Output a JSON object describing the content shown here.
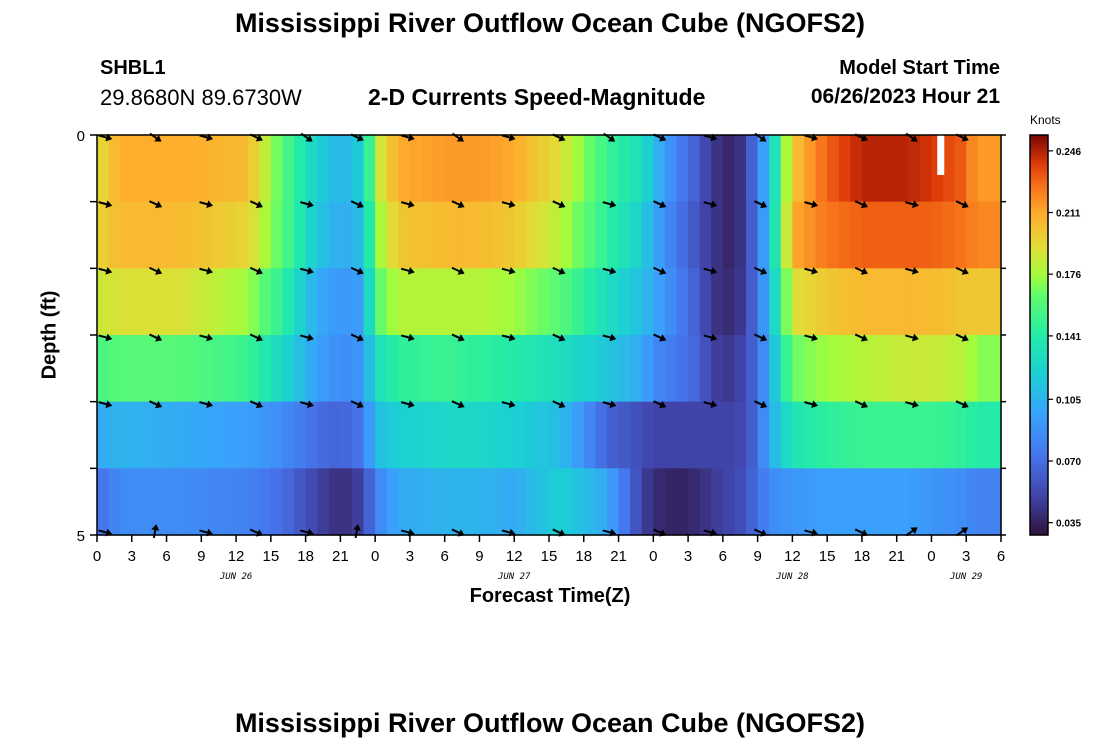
{
  "chart_data": {
    "type": "heatmap",
    "title": "Mississippi River Outflow Ocean Cube (NGOFS2)",
    "station": "SHBL1",
    "coordinates": "29.8680N  89.6730W",
    "subtitle": "2-D Currents Speed-Magnitude",
    "model_start_label": "Model Start Time",
    "model_start_value": "06/26/2023 Hour 21",
    "xlabel": "Forecast Time(Z)",
    "ylabel": "Depth (ft)",
    "y_tick_labels": [
      "0",
      "5"
    ],
    "ylim": [
      0,
      5
    ],
    "x_tick_labels": [
      "0",
      "3",
      "6",
      "9",
      "12",
      "15",
      "18",
      "21",
      "0",
      "3",
      "6",
      "9",
      "12",
      "15",
      "18",
      "21",
      "0",
      "3",
      "6",
      "9",
      "12",
      "15",
      "18",
      "21",
      "0",
      "3",
      "6"
    ],
    "date_labels": [
      {
        "label": "JUN 26",
        "hour": 12
      },
      {
        "label": "JUN 27",
        "hour": 36
      },
      {
        "label": "JUN 28",
        "hour": 60
      },
      {
        "label": "JUN 29",
        "hour": 75
      }
    ],
    "x_range_hours": [
      0,
      78
    ],
    "colorbar": {
      "unit": "Knots",
      "tick_labels": [
        "0.246",
        "0.211",
        "0.176",
        "0.141",
        "0.105",
        "0.070",
        "0.035"
      ],
      "ticks": [
        0.246,
        0.211,
        0.176,
        0.141,
        0.105,
        0.07,
        0.035
      ],
      "range": [
        0.028,
        0.255
      ]
    },
    "layers_depth_ft": [
      0,
      1,
      2,
      3,
      4,
      5
    ],
    "speed_keyframes": {
      "hours": [
        0,
        2,
        7,
        13,
        16,
        19,
        21,
        23,
        24,
        26,
        30,
        33,
        36,
        40,
        44,
        47,
        48,
        50,
        52,
        53,
        54,
        55,
        56,
        57,
        58,
        60,
        63,
        66,
        70,
        72,
        75,
        76,
        77,
        78
      ],
      "layers": [
        [
          0.19,
          0.21,
          0.21,
          0.205,
          0.16,
          0.12,
          0.105,
          0.12,
          0.18,
          0.21,
          0.215,
          0.215,
          0.21,
          0.19,
          0.15,
          0.13,
          0.11,
          0.08,
          0.06,
          0.045,
          0.04,
          0.035,
          0.05,
          0.08,
          0.11,
          0.2,
          0.23,
          0.245,
          0.245,
          0.24,
          0.23,
          0.21,
          0.22,
          0.21
        ],
        [
          0.195,
          0.205,
          0.205,
          0.195,
          0.16,
          0.115,
          0.1,
          0.11,
          0.17,
          0.2,
          0.205,
          0.205,
          0.2,
          0.18,
          0.145,
          0.12,
          0.1,
          0.075,
          0.055,
          0.045,
          0.04,
          0.035,
          0.05,
          0.075,
          0.11,
          0.21,
          0.225,
          0.23,
          0.23,
          0.23,
          0.225,
          0.22,
          0.22,
          0.22
        ],
        [
          0.185,
          0.19,
          0.19,
          0.175,
          0.145,
          0.1,
          0.09,
          0.095,
          0.16,
          0.18,
          0.18,
          0.18,
          0.175,
          0.16,
          0.13,
          0.11,
          0.1,
          0.08,
          0.06,
          0.045,
          0.04,
          0.04,
          0.05,
          0.075,
          0.105,
          0.19,
          0.2,
          0.205,
          0.205,
          0.205,
          0.2,
          0.2,
          0.2,
          0.2
        ],
        [
          0.155,
          0.16,
          0.16,
          0.15,
          0.125,
          0.095,
          0.085,
          0.09,
          0.13,
          0.145,
          0.15,
          0.145,
          0.14,
          0.13,
          0.115,
          0.1,
          0.085,
          0.075,
          0.065,
          0.05,
          0.045,
          0.045,
          0.055,
          0.07,
          0.1,
          0.165,
          0.175,
          0.18,
          0.185,
          0.185,
          0.18,
          0.17,
          0.17,
          0.17
        ],
        [
          0.1,
          0.105,
          0.1,
          0.095,
          0.085,
          0.07,
          0.065,
          0.075,
          0.11,
          0.12,
          0.125,
          0.125,
          0.12,
          0.11,
          0.065,
          0.055,
          0.05,
          0.05,
          0.05,
          0.05,
          0.05,
          0.05,
          0.055,
          0.07,
          0.1,
          0.135,
          0.145,
          0.15,
          0.15,
          0.15,
          0.145,
          0.14,
          0.14,
          0.14
        ],
        [
          0.07,
          0.085,
          0.085,
          0.08,
          0.07,
          0.05,
          0.04,
          0.05,
          0.08,
          0.1,
          0.105,
          0.105,
          0.1,
          0.12,
          0.1,
          0.05,
          0.04,
          0.035,
          0.04,
          0.045,
          0.05,
          0.05,
          0.06,
          0.07,
          0.085,
          0.09,
          0.095,
          0.095,
          0.095,
          0.09,
          0.085,
          0.08,
          0.08,
          0.08
        ]
      ]
    }
  }
}
